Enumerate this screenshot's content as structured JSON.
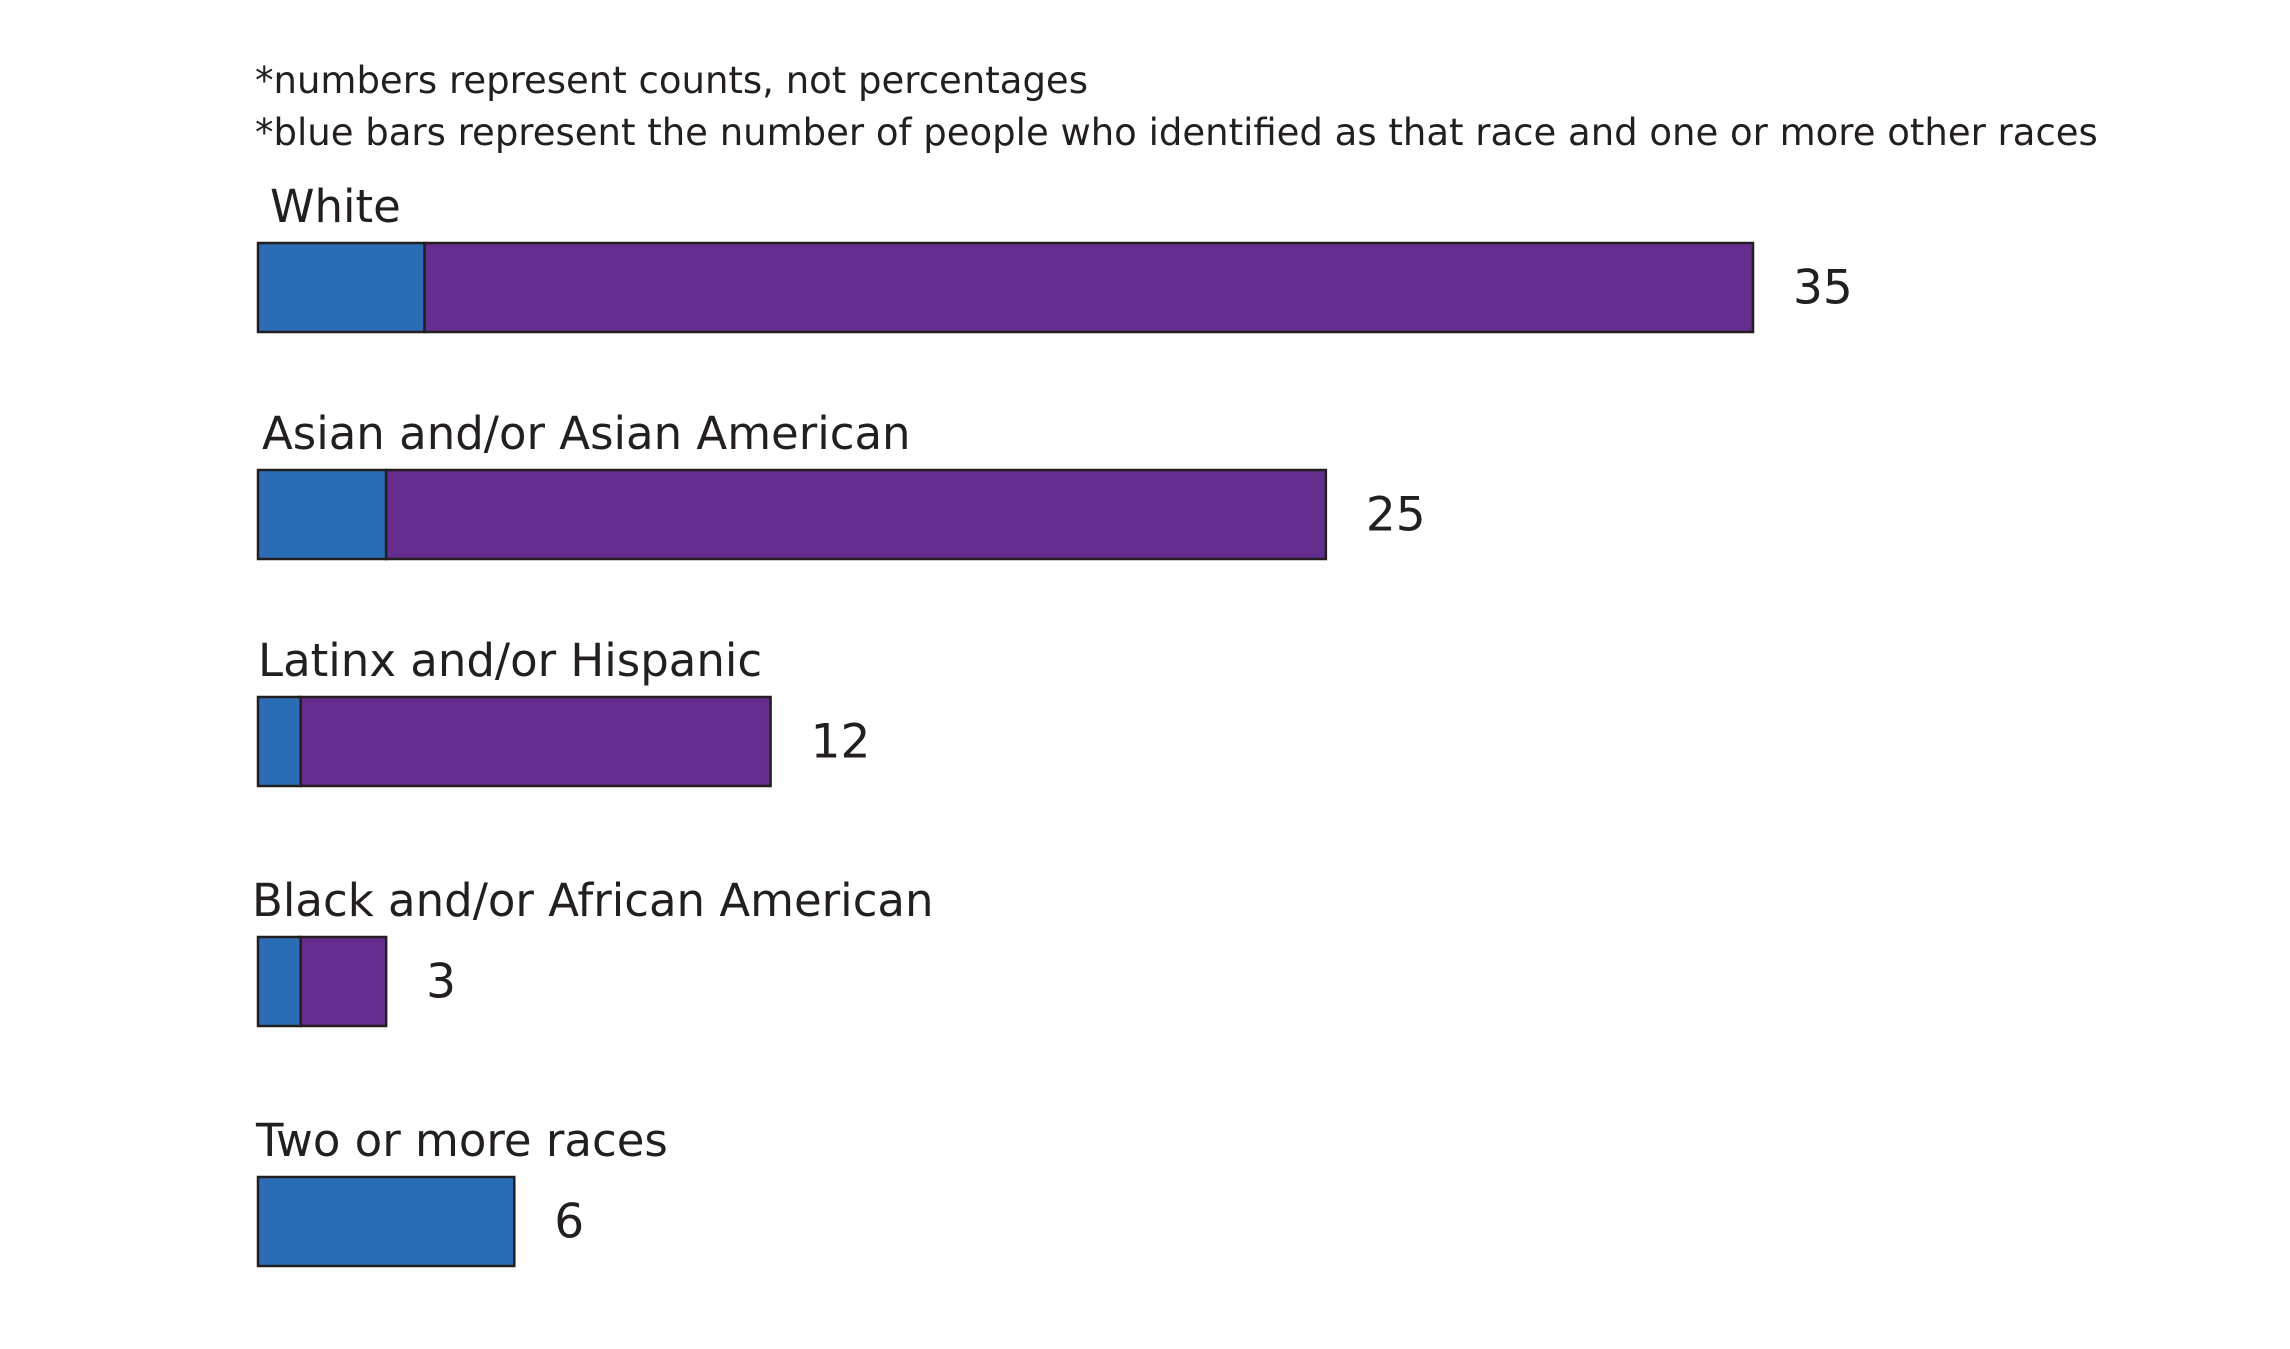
{
  "notes": [
    "*numbers represent counts, not percentages",
    "*blue bars represent the number of people who identified as that race and one or more other races"
  ],
  "colors": {
    "multiracial": "#2b6db4",
    "single_race": "#652d8e",
    "text": "#231f20",
    "bar_outline": "#231f20"
  },
  "chart_data": {
    "type": "bar",
    "orientation": "horizontal",
    "stacked": true,
    "title": "",
    "xlabel": "",
    "ylabel": "",
    "grid": false,
    "legend": "none",
    "xlim": [
      0,
      35
    ],
    "categories": [
      "White",
      "Asian and/or Asian American",
      "Latinx and/or Hispanic",
      "Black and/or African American",
      "Two or more races"
    ],
    "series": [
      {
        "values": [
          3.9,
          3.0,
          1.0,
          1.0,
          6
        ],
        "color": "#2b6db4"
      },
      {
        "values": [
          31.1,
          22.0,
          11.0,
          2.0,
          0
        ],
        "color": "#652d8e"
      }
    ],
    "totals": [
      35,
      25,
      12,
      3,
      6
    ],
    "total_labels": [
      "35",
      "25",
      "12",
      "3",
      "6"
    ]
  }
}
